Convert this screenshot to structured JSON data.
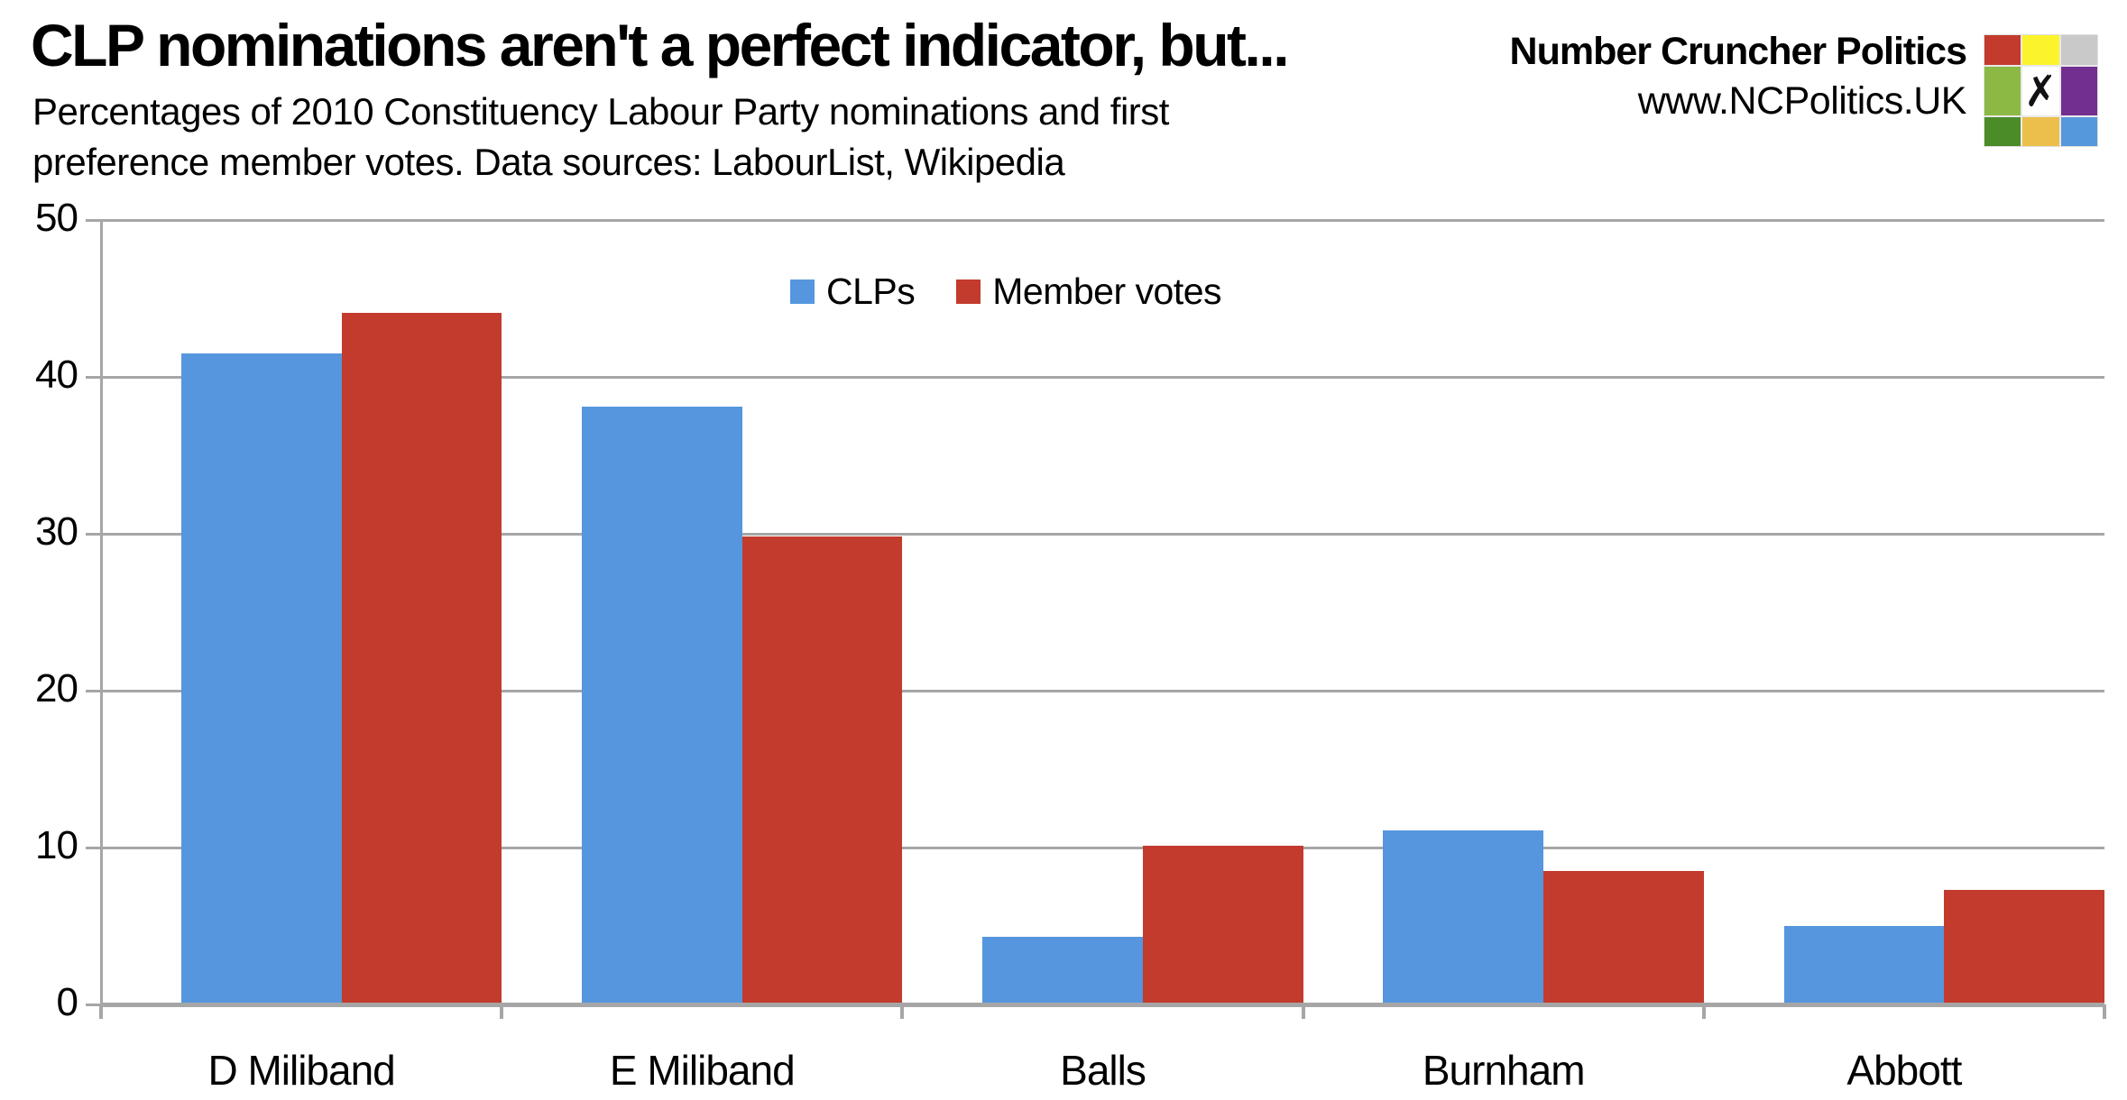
{
  "header": {
    "title": "CLP nominations aren't a perfect indicator, but...",
    "subtitle_lines": [
      "Percentages of 2010 Constituency Labour Party nominations and first",
      "preference member votes. Data sources: LabourList, Wikipedia"
    ],
    "brand": {
      "name": "Number Cruncher Politics",
      "url": "www.NCPolitics.UK",
      "logo_center_glyph": "✗",
      "logo_grid_colors": [
        [
          "#c23b2c",
          "#fbf42c",
          "#c9c9c9"
        ],
        [
          "#8cb944",
          "#ffffff",
          "#722f8f"
        ],
        [
          "#4b8b28",
          "#ecbe4c",
          "#5598dc"
        ]
      ]
    }
  },
  "chart_data": {
    "type": "bar",
    "categories": [
      "D Miliband",
      "E Miliband",
      "Balls",
      "Burnham",
      "Abbott"
    ],
    "series": [
      {
        "name": "CLPs",
        "color": "#5596de",
        "values": [
          41.5,
          38.1,
          4.3,
          11.1,
          5.0
        ]
      },
      {
        "name": "Member votes",
        "color": "#c23b2c",
        "values": [
          44.1,
          29.8,
          10.1,
          8.5,
          7.3
        ]
      }
    ],
    "title": "",
    "xlabel": "",
    "ylabel": "",
    "ylim": [
      0,
      50
    ],
    "yticks": [
      0,
      10,
      20,
      30,
      40,
      50
    ],
    "grid": "horizontal",
    "legend_position": "top-inside",
    "axis_color": "#a6a6a6",
    "background": "#ffffff"
  }
}
